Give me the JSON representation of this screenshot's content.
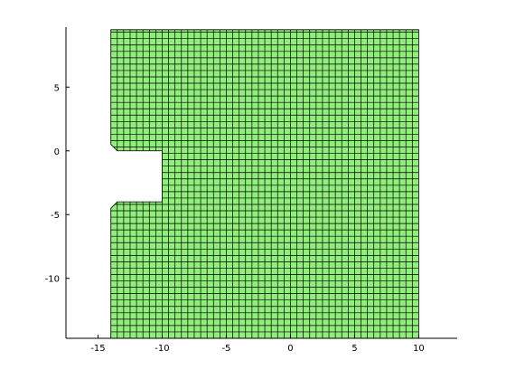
{
  "chart_data": {
    "type": "mesh",
    "title": "",
    "xlabel": "",
    "ylabel": "",
    "xlim": [
      -17.5,
      13
    ],
    "ylim": [
      -14.7,
      9.7
    ],
    "xticks": [
      -15,
      -10,
      -5,
      0,
      5,
      10
    ],
    "yticks": [
      -10,
      -5,
      0,
      5
    ],
    "xtick_labels": [
      "-15",
      "-10",
      "-5",
      "0",
      "5",
      "10"
    ],
    "ytick_labels": [
      "-10",
      "-5",
      "0",
      "5"
    ],
    "grid": false,
    "legend": "none",
    "cell_size": 0.5,
    "fill_color": "#90ee7a",
    "edge_color": "#000000",
    "domain_outline": [
      [
        -14,
        -14.7
      ],
      [
        10,
        -14.7
      ],
      [
        10,
        9.5
      ],
      [
        -14,
        9.5
      ],
      [
        -14,
        0.5
      ],
      [
        -13.5,
        0
      ],
      [
        -10,
        0
      ],
      [
        -10,
        -4
      ],
      [
        -13.5,
        -4
      ],
      [
        -14,
        -4.5
      ]
    ]
  }
}
